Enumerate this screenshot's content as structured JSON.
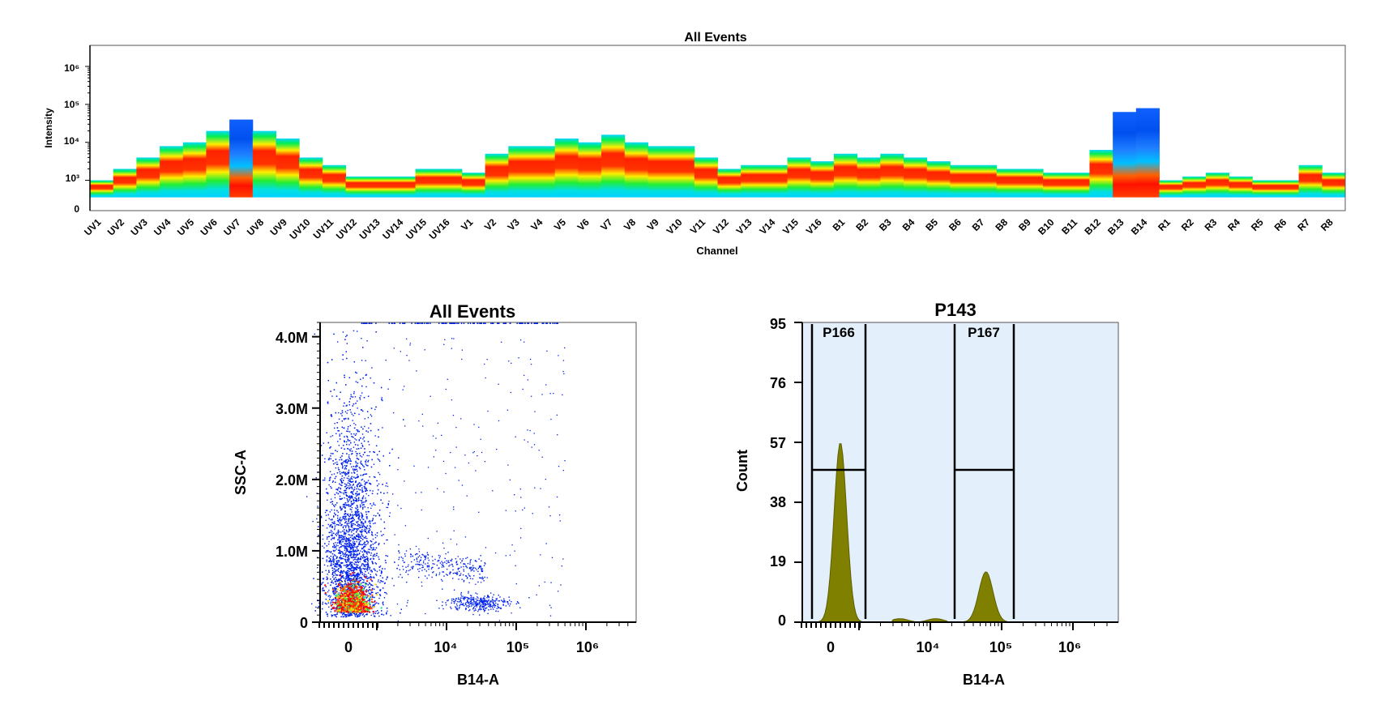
{
  "chart_data": [
    {
      "type": "heatmap",
      "title": "All Events",
      "xlabel": "Channel",
      "ylabel": "Intensity",
      "y_scale": "log",
      "y_ticks": [
        "0",
        "10³",
        "10⁴",
        "10⁵",
        "10⁶"
      ],
      "channels": [
        "UV1",
        "UV2",
        "UV3",
        "UV4",
        "UV5",
        "UV6",
        "UV7",
        "UV8",
        "UV9",
        "UV10",
        "UV11",
        "UV12",
        "UV13",
        "UV14",
        "UV15",
        "UV16",
        "V1",
        "V2",
        "V3",
        "V4",
        "V5",
        "V6",
        "V7",
        "V8",
        "V9",
        "V10",
        "V11",
        "V12",
        "V13",
        "V14",
        "V15",
        "V16",
        "B1",
        "B2",
        "B3",
        "B4",
        "B5",
        "B6",
        "B7",
        "B8",
        "B9",
        "B10",
        "B11",
        "B12",
        "B13",
        "B14",
        "R1",
        "R2",
        "R3",
        "R4",
        "R5",
        "R6",
        "R7",
        "R8"
      ],
      "max_log10": [
        3.0,
        3.3,
        3.6,
        3.9,
        4.0,
        4.3,
        4.6,
        4.3,
        4.1,
        3.6,
        3.4,
        3.1,
        3.1,
        3.1,
        3.3,
        3.3,
        3.2,
        3.7,
        3.9,
        3.9,
        4.1,
        4.0,
        4.2,
        4.0,
        3.9,
        3.9,
        3.6,
        3.3,
        3.4,
        3.4,
        3.6,
        3.5,
        3.7,
        3.6,
        3.7,
        3.6,
        3.5,
        3.4,
        3.4,
        3.3,
        3.3,
        3.2,
        3.2,
        3.8,
        4.8,
        4.9,
        3.0,
        3.1,
        3.2,
        3.1,
        3.0,
        3.0,
        3.4,
        3.2
      ],
      "colorscale": [
        "#0055ff",
        "#00e5ff",
        "#00ee44",
        "#ffee00",
        "#ff0000"
      ],
      "grid": false
    },
    {
      "type": "scatter",
      "title": "All Events",
      "xlabel": "B14-A",
      "ylabel": "SSC-A",
      "x_scale": "biexponential",
      "x_ticks": [
        "0",
        "10⁴",
        "10⁵",
        "10⁶"
      ],
      "y_ticks": [
        "0",
        "1.0M",
        "2.0M",
        "3.0M",
        "4.0M"
      ],
      "ylim": [
        0,
        4200000
      ],
      "clusters": [
        {
          "x_center": 500,
          "y_center": 1500000,
          "count": 5200
        },
        {
          "x_center": 5000,
          "y_center": 850000,
          "count": 180
        },
        {
          "x_center": 60000,
          "y_center": 280000,
          "count": 250
        }
      ],
      "point_color": "#0022ee",
      "grid": false
    },
    {
      "type": "area",
      "title": "P143",
      "xlabel": "B14-A",
      "ylabel": "Count",
      "x_scale": "biexponential",
      "x_ticks": [
        "0",
        "10⁴",
        "10⁵",
        "10⁶"
      ],
      "y_ticks": [
        "0",
        "19",
        "38",
        "57",
        "76",
        "95"
      ],
      "ylim": [
        0,
        95
      ],
      "peaks": [
        {
          "x_center": 150,
          "count": 57
        },
        {
          "x_center": 60000,
          "count": 16
        }
      ],
      "fill_color": "#808000",
      "background_color": "#e3f0fb",
      "gates": [
        {
          "label": "P166",
          "range": [
            -800,
            1500
          ]
        },
        {
          "label": "P167",
          "range": [
            20000,
            140000
          ]
        }
      ],
      "grid": false
    }
  ]
}
